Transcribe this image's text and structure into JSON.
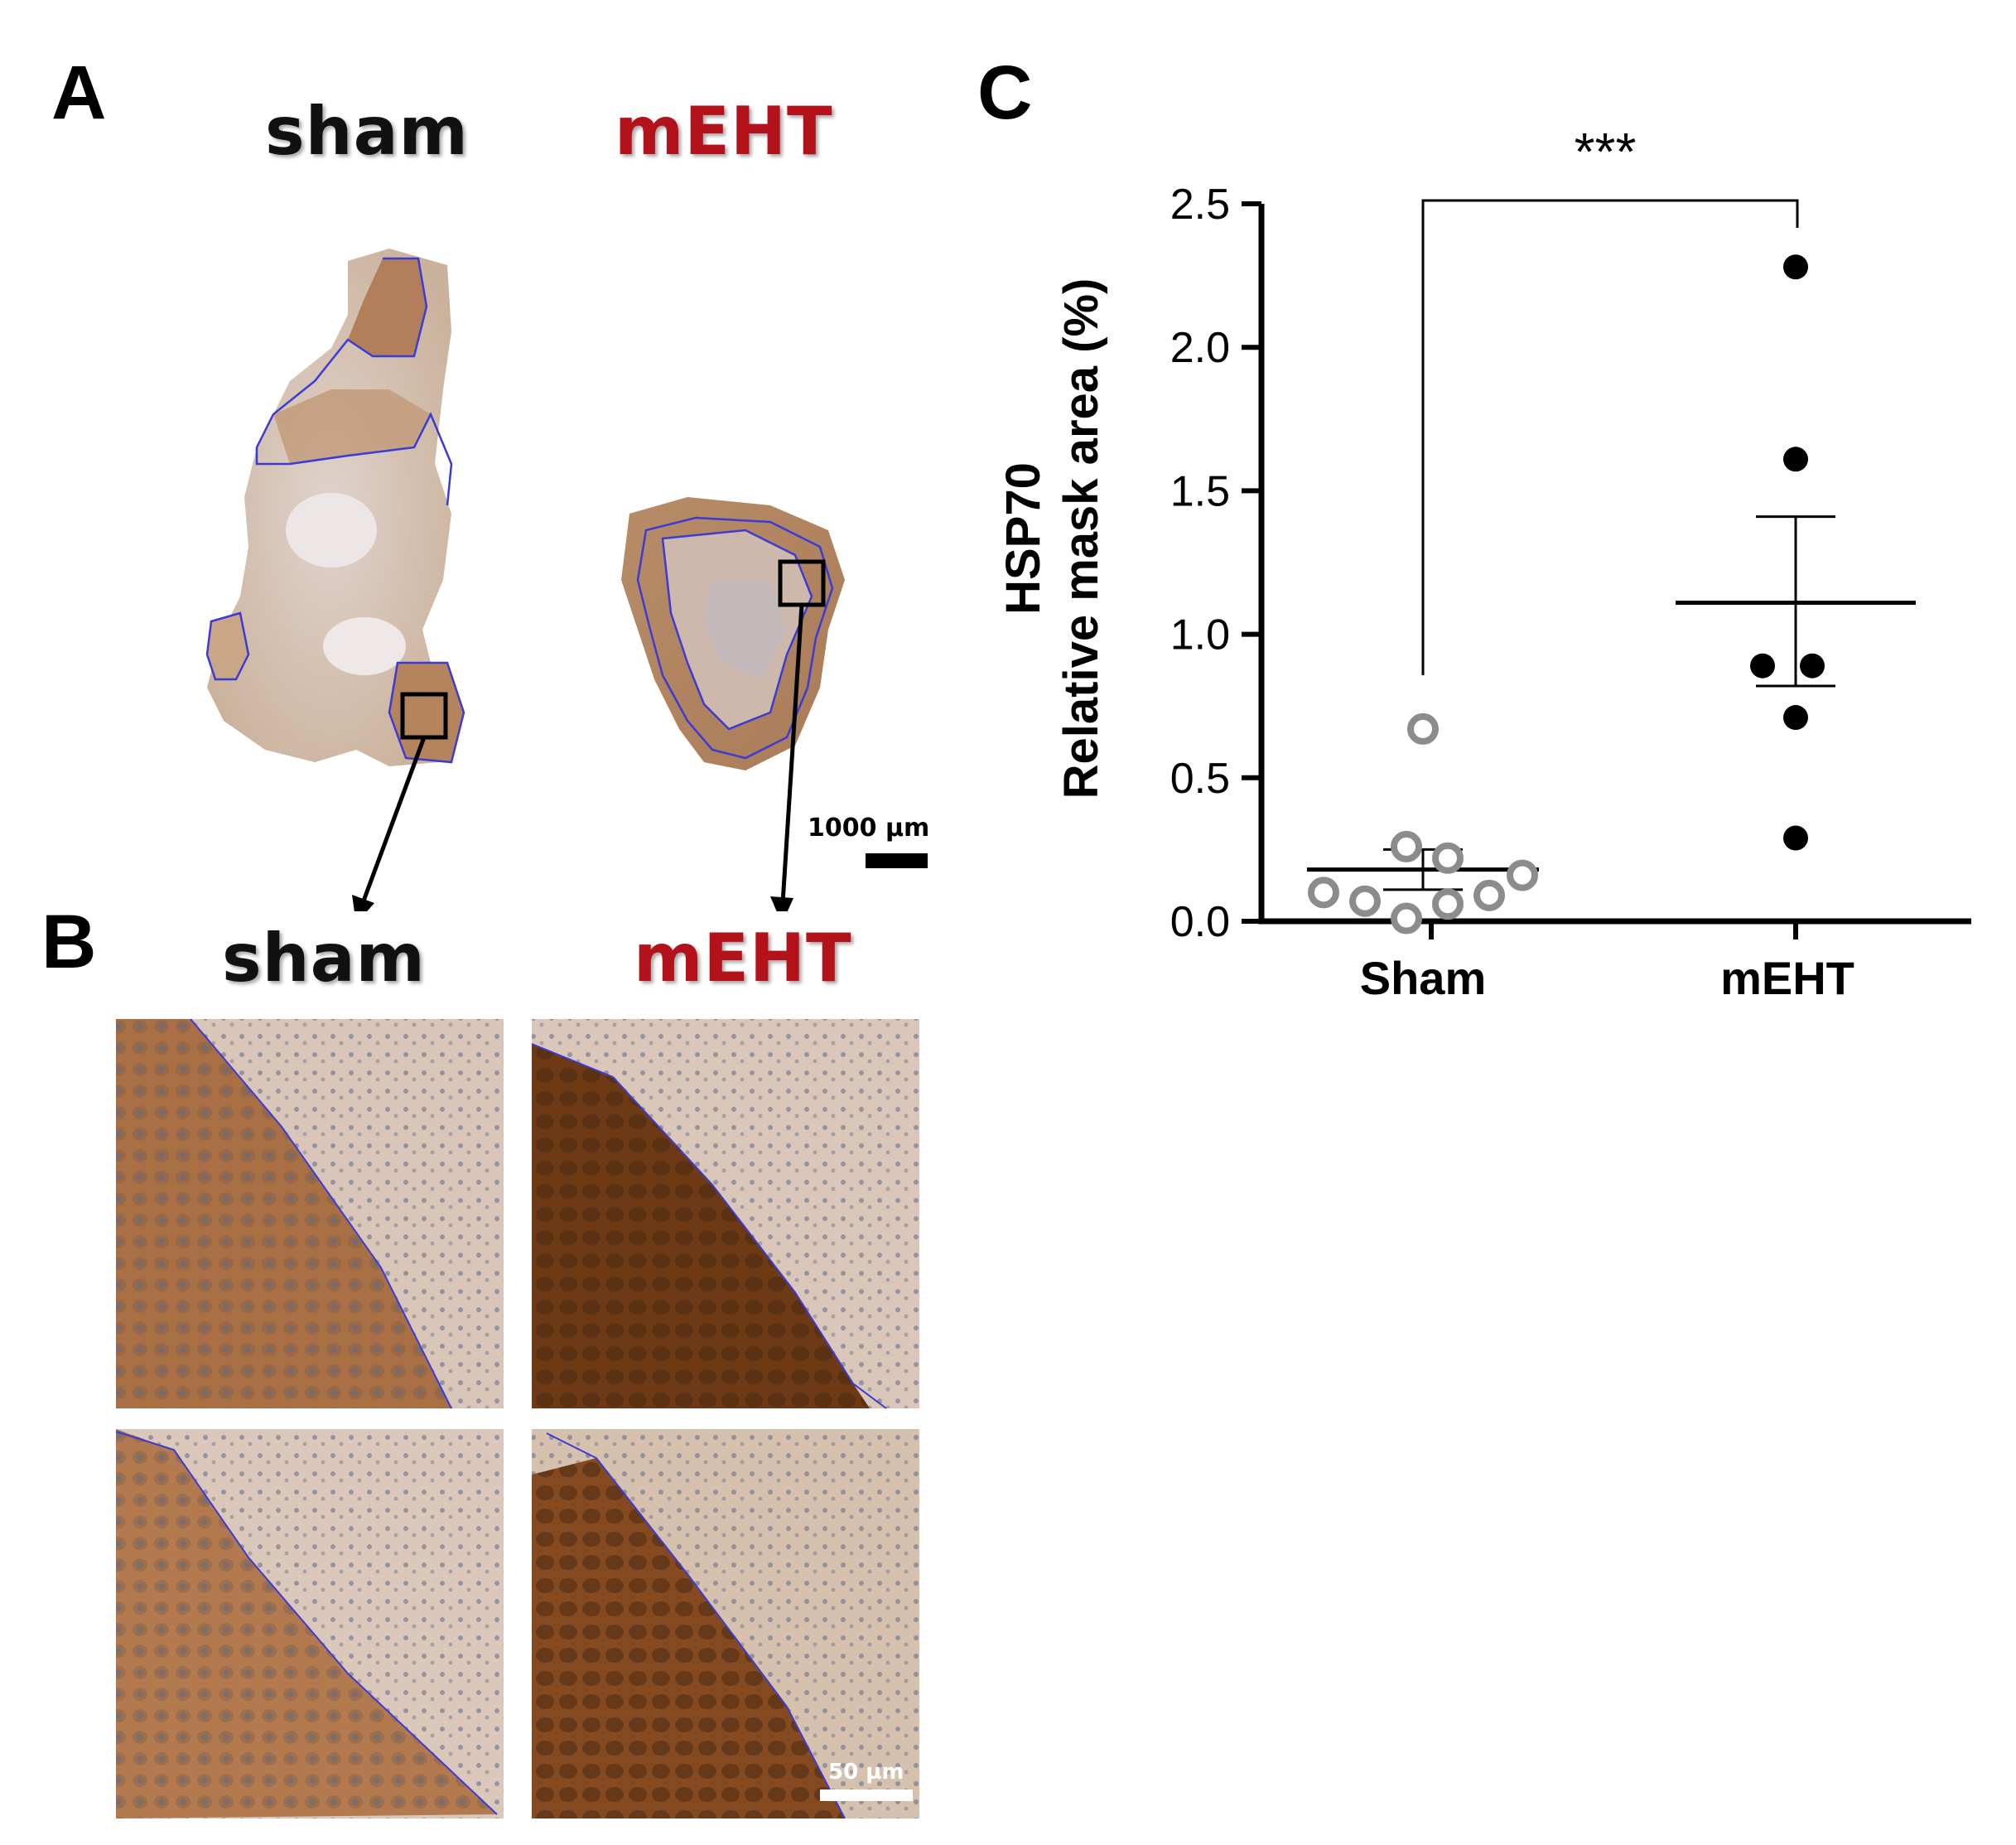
{
  "panels": {
    "a": {
      "letter": "A",
      "sham_label": "sham",
      "meht_label": "mEHT",
      "scale_label": "1000 µm"
    },
    "b": {
      "letter": "B",
      "sham_label": "sham",
      "meht_label": "mEHT",
      "scale_label": "50 µm"
    },
    "c": {
      "letter": "C"
    }
  },
  "colors": {
    "meht_red": "#b3121a",
    "outline_blue": "#3b3bd6",
    "sham_marker": "#8c8c8c",
    "meht_marker": "#000000",
    "tissue_light": "#d8c2ae",
    "tissue_dark": "#8a4f24"
  },
  "chart_data": {
    "type": "scatter",
    "title": "",
    "ylabel_line1": "HSP70",
    "ylabel_line2": "Relative mask area (%)",
    "xlabel": "",
    "ylim": [
      0,
      2.5
    ],
    "yticks": [
      "0.0",
      "0.5",
      "1.0",
      "1.5",
      "2.0",
      "2.5"
    ],
    "categories": [
      "Sham",
      "mEHT"
    ],
    "significance": "***",
    "series": [
      {
        "name": "Sham",
        "marker": "open-circle",
        "values": [
          0.67,
          0.26,
          0.22,
          0.16,
          0.1,
          0.07,
          0.01,
          0.06,
          0.09
        ],
        "mean": 0.18,
        "sem_upper": 0.25,
        "sem_lower": 0.11
      },
      {
        "name": "mEHT",
        "marker": "filled-circle",
        "values": [
          2.28,
          1.61,
          0.89,
          0.89,
          0.71,
          0.29
        ],
        "mean": 1.11,
        "sem_upper": 1.41,
        "sem_lower": 0.82
      }
    ]
  }
}
